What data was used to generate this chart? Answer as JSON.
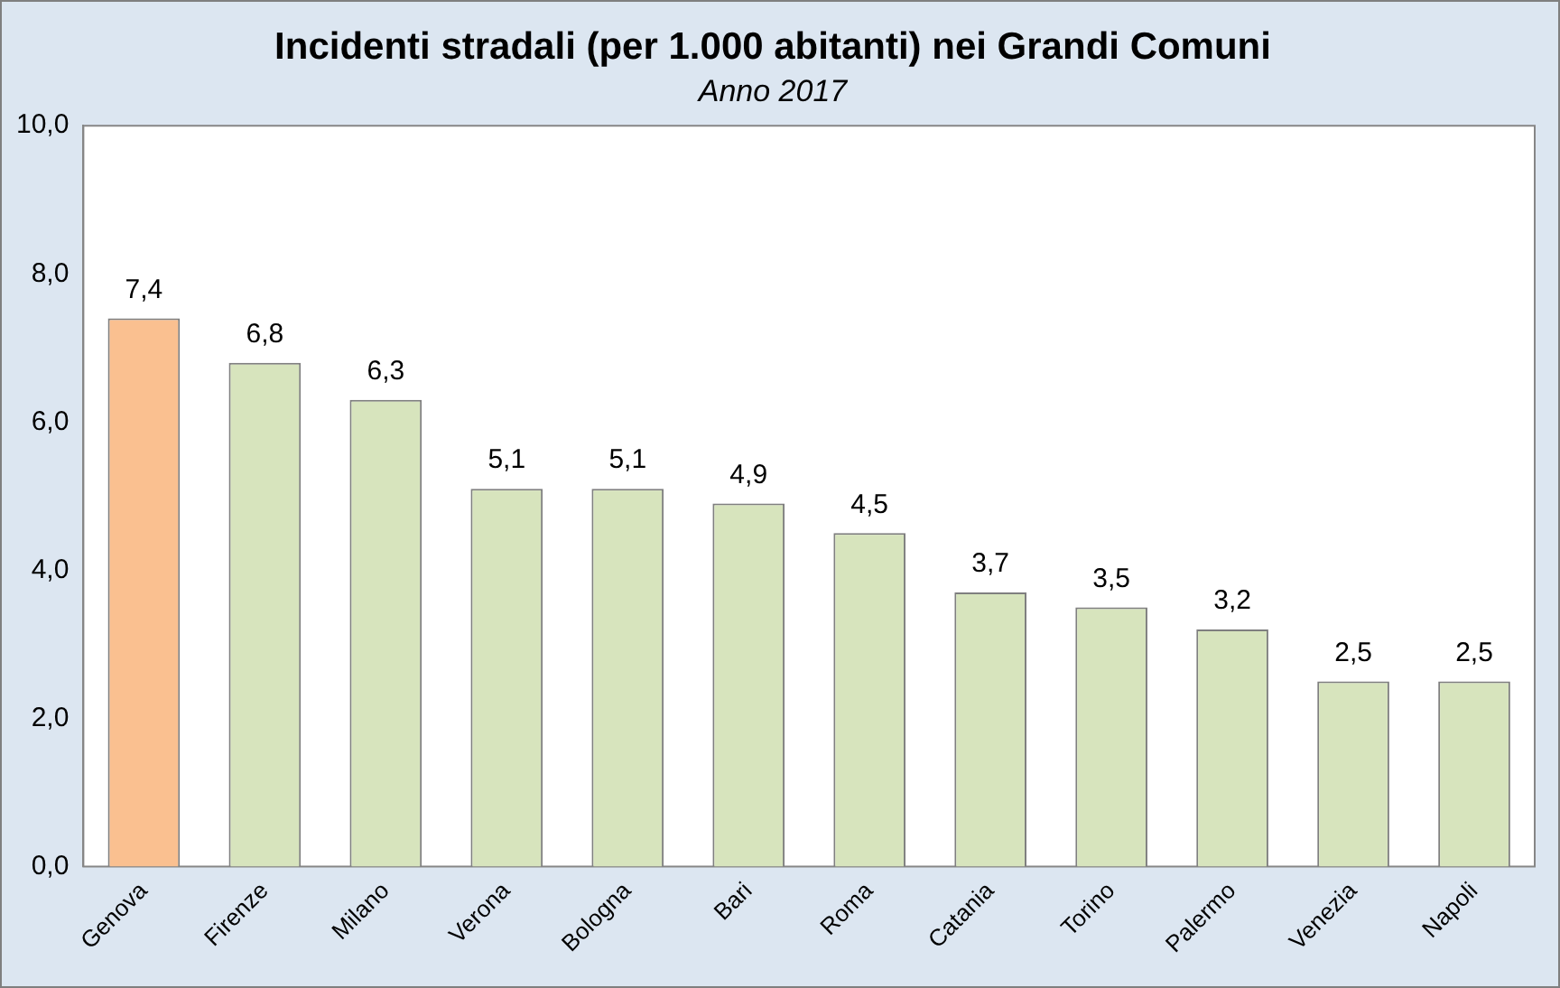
{
  "chart_data": {
    "type": "bar",
    "title": "Incidenti stradali (per 1.000 abitanti) nei Grandi Comuni",
    "subtitle": "Anno 2017",
    "categories": [
      "Genova",
      "Firenze",
      "Milano",
      "Verona",
      "Bologna",
      "Bari",
      "Roma",
      "Catania",
      "Torino",
      "Palermo",
      "Venezia",
      "Napoli"
    ],
    "values": [
      7.4,
      6.8,
      6.3,
      5.1,
      5.1,
      4.9,
      4.5,
      3.7,
      3.5,
      3.2,
      2.5,
      2.5
    ],
    "colors": [
      "#fac090",
      "#d7e4bd",
      "#d7e4bd",
      "#d7e4bd",
      "#d7e4bd",
      "#d7e4bd",
      "#d7e4bd",
      "#d7e4bd",
      "#d7e4bd",
      "#d7e4bd",
      "#d7e4bd",
      "#d7e4bd"
    ],
    "value_labels": [
      "7,4",
      "6,8",
      "6,3",
      "5,1",
      "5,1",
      "4,9",
      "4,5",
      "3,7",
      "3,5",
      "3,2",
      "2,5",
      "2,5"
    ],
    "ylim": [
      0,
      10
    ],
    "yticks": [
      {
        "value": 0,
        "label": "0,0"
      },
      {
        "value": 2,
        "label": "2,0"
      },
      {
        "value": 4,
        "label": "4,0"
      },
      {
        "value": 6,
        "label": "6,0"
      },
      {
        "value": 8,
        "label": "8,0"
      },
      {
        "value": 10,
        "label": "10,0"
      }
    ],
    "grid": false,
    "legend": false
  }
}
